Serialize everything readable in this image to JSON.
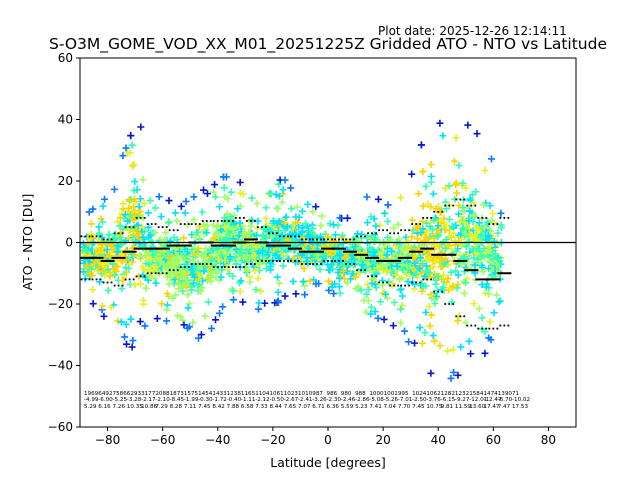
{
  "chart_data": {
    "type": "scatter",
    "plot_date": "Plot date: 2025-12-26 12:14:11",
    "title": "S-O3M_GOME_VOD_XX_M01_20251225Z Gridded ATO - NTO vs Latitude",
    "xlabel": "Latitude [degrees]",
    "ylabel": "ATO - NTO [DU]",
    "xlim": [
      -90,
      90
    ],
    "ylim": [
      -60,
      60
    ],
    "x_ticks": [
      -80,
      -60,
      -40,
      -20,
      0,
      20,
      40,
      60,
      80
    ],
    "y_ticks": [
      -60,
      -40,
      -20,
      0,
      20,
      40,
      60
    ],
    "x_tick_labels": [
      "−80",
      "−60",
      "−40",
      "−20",
      "0",
      "20",
      "40",
      "60",
      "80"
    ],
    "y_tick_labels": [
      "−60",
      "−40",
      "−20",
      "0",
      "20",
      "40",
      "60"
    ],
    "zero_line": 0,
    "marker": "+",
    "colormap": [
      "#0a14d2",
      "#0a78ff",
      "#00e0ff",
      "#32ffb4",
      "#a0ff64",
      "#e6f028",
      "#ffd200"
    ],
    "scatter_envelope": {
      "lat": [
        -88,
        -84,
        -80,
        -76,
        -74,
        -72,
        -70,
        -68,
        -66,
        -62,
        -58,
        -54,
        -50,
        -46,
        -42,
        -38,
        -34,
        -30,
        -26,
        -22,
        -18,
        -14,
        -10,
        -6,
        -2,
        2,
        6,
        10,
        14,
        18,
        22,
        26,
        30,
        34,
        38,
        42,
        46,
        50,
        54,
        58,
        62
      ],
      "upper": [
        10,
        14,
        16,
        22,
        30,
        38,
        45,
        40,
        18,
        16,
        15,
        14,
        16,
        17,
        20,
        22,
        24,
        19,
        17,
        21,
        24,
        18,
        17,
        14,
        12,
        10,
        8,
        12,
        17,
        16,
        14,
        18,
        24,
        33,
        38,
        42,
        45,
        45,
        40,
        35,
        12
      ],
      "lower": [
        -20,
        -22,
        -25,
        -30,
        -33,
        -35,
        -33,
        -30,
        -28,
        -25,
        -26,
        -28,
        -30,
        -33,
        -28,
        -22,
        -20,
        -22,
        -24,
        -22,
        -20,
        -18,
        -18,
        -16,
        -15,
        -18,
        -20,
        -22,
        -26,
        -28,
        -26,
        -30,
        -35,
        -40,
        -44,
        -45,
        -45,
        -42,
        -40,
        -36,
        -25
      ]
    },
    "series": [
      {
        "name": "mean",
        "style": "thick-dash",
        "x": [
          -88,
          -84,
          -80,
          -76,
          -72,
          -68,
          -64,
          -60,
          -56,
          -52,
          -48,
          -44,
          -40,
          -36,
          -32,
          -28,
          -24,
          -20,
          -16,
          -12,
          -8,
          -4,
          0,
          4,
          8,
          12,
          16,
          20,
          24,
          28,
          32,
          36,
          40,
          44,
          48,
          52,
          56,
          60,
          64
        ],
        "y": [
          -5,
          -5,
          -6,
          -5,
          -3,
          -2,
          -2,
          -2,
          -1,
          -1,
          0,
          0,
          -1,
          -1,
          0,
          1,
          0,
          -1,
          -1,
          -2,
          -3,
          -3,
          -2,
          -2,
          -3,
          -4,
          -5,
          -6,
          -6,
          -5,
          -3,
          -2,
          -4,
          -4,
          -6,
          -9,
          -12,
          -12,
          -10
        ]
      },
      {
        "name": "mean+std",
        "style": "dotted",
        "x": [
          -88,
          -84,
          -80,
          -76,
          -72,
          -68,
          -64,
          -60,
          -56,
          -52,
          -48,
          -44,
          -40,
          -36,
          -32,
          -28,
          -24,
          -20,
          -16,
          -12,
          -8,
          -4,
          0,
          4,
          8,
          12,
          16,
          20,
          24,
          28,
          32,
          36,
          40,
          44,
          48,
          52,
          56,
          60,
          64
        ],
        "y": [
          2,
          2,
          1,
          3,
          5,
          8,
          6,
          5,
          4,
          6,
          6,
          7,
          7,
          7,
          8,
          7,
          5,
          3,
          2,
          2,
          1,
          1,
          1,
          1,
          1,
          2,
          3,
          4,
          3,
          4,
          6,
          8,
          10,
          12,
          14,
          12,
          8,
          6,
          8
        ]
      },
      {
        "name": "mean-std",
        "style": "dotted",
        "x": [
          -88,
          -84,
          -80,
          -76,
          -72,
          -68,
          -64,
          -60,
          -56,
          -52,
          -48,
          -44,
          -40,
          -36,
          -32,
          -28,
          -24,
          -20,
          -16,
          -12,
          -8,
          -4,
          0,
          4,
          8,
          12,
          16,
          20,
          24,
          28,
          32,
          36,
          40,
          44,
          48,
          52,
          56,
          60,
          64
        ],
        "y": [
          -12,
          -12,
          -13,
          -14,
          -12,
          -11,
          -10,
          -10,
          -9,
          -8,
          -7,
          -7,
          -8,
          -8,
          -8,
          -7,
          -6,
          -6,
          -6,
          -6,
          -7,
          -7,
          -6,
          -6,
          -7,
          -9,
          -11,
          -13,
          -14,
          -14,
          -13,
          -12,
          -16,
          -20,
          -24,
          -27,
          -28,
          -28,
          -27
        ]
      }
    ],
    "stat_rows": [
      [
        "1969",
        "6492",
        "7586",
        "6293",
        "3177",
        "2088",
        "1873",
        "1575",
        "1454",
        "1433",
        "1238",
        "1165",
        "1104",
        "1061",
        "1023",
        "1010",
        "987",
        "986",
        "980",
        "988",
        "1000",
        "1001",
        "995",
        "1024",
        "1062",
        "1282",
        "1232",
        "1584",
        "1474",
        "1390",
        "71"
      ],
      [
        "-4.99",
        "-6.00",
        "-5.25",
        "-3.28",
        "-2.17",
        "-2.10",
        "-8.45",
        "-1.99",
        "-0.30",
        "-1.72",
        "-0.40",
        "-1.11",
        "-2.12",
        "-0.50",
        "-2.67",
        "-2.41",
        "-3.26",
        "-2.30",
        "-2.46",
        "-2.86",
        "-5.08",
        "-5.26",
        "-7.01",
        "-2.50",
        "-3.76",
        "-6.15",
        "-9.27",
        "-12.01",
        "-12.47",
        "-6.70",
        "-10.02"
      ],
      [
        "5.29",
        "6.16",
        "7.26",
        "10.35",
        "10.86",
        "7.29",
        "8.28",
        "7.11",
        "7.45",
        "8.42",
        "7.88",
        "6.58",
        "7.33",
        "8.44",
        "7.65",
        "7.07",
        "6.71",
        "6.36",
        "5.59",
        "5.23",
        "7.41",
        "7.04",
        "7.70",
        "7.45",
        "10.75",
        "9.81",
        "11.59",
        "13.60",
        "17.47",
        "7.47",
        "17.53"
      ]
    ]
  }
}
